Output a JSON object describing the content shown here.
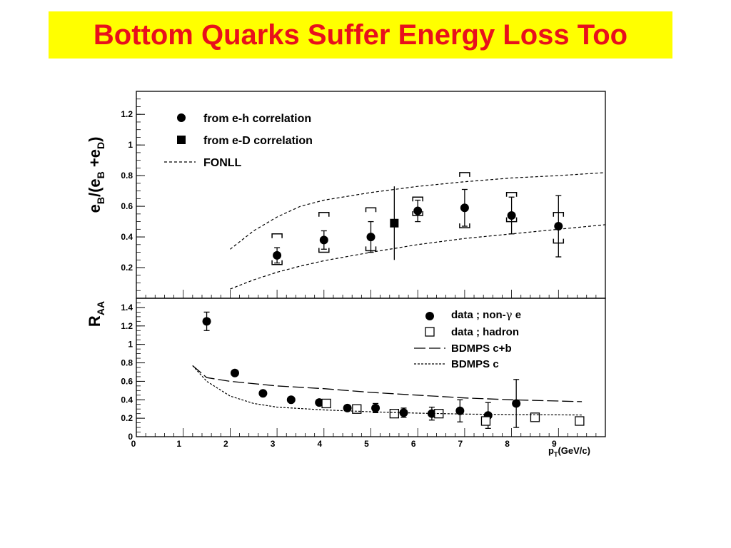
{
  "page_title": "Bottom Quarks Suffer Energy Loss Too",
  "colors": {
    "title_bg": "#ffff00",
    "title_text": "#e8101c",
    "ink": "#000000"
  },
  "chart_data": [
    {
      "type": "scatter",
      "panel": "top",
      "ylabel_parts": {
        "main": "e",
        "sub1": "B",
        "mid": "/(e",
        "sub2": "B",
        "plus": " +e",
        "sub3": "D",
        "close": ")"
      },
      "xlim": [
        0,
        10
      ],
      "ylim": [
        0.0,
        1.35
      ],
      "yticks": [
        0.2,
        0.4,
        0.6,
        0.8,
        1,
        1.2
      ],
      "ytick_labels": [
        "0.2",
        "0.4",
        "0.6",
        "0.8",
        "1",
        "1.2"
      ],
      "legend_position": "top-left",
      "series": [
        {
          "name": "from  e-h correlation",
          "marker": "filled-circle",
          "points": [
            {
              "x": 3.0,
              "y": 0.28,
              "err": 0.05,
              "sys_lo": 0.22,
              "sys_hi": 0.42
            },
            {
              "x": 4.0,
              "y": 0.38,
              "err": 0.06,
              "sys_lo": 0.3,
              "sys_hi": 0.56
            },
            {
              "x": 5.0,
              "y": 0.4,
              "err": 0.1,
              "sys_lo": 0.31,
              "sys_hi": 0.59
            },
            {
              "x": 6.0,
              "y": 0.57,
              "err": 0.07,
              "sys_lo": 0.54,
              "sys_hi": 0.66
            },
            {
              "x": 7.0,
              "y": 0.59,
              "err": 0.12,
              "sys_lo": 0.46,
              "sys_hi": 0.82
            },
            {
              "x": 8.0,
              "y": 0.54,
              "err": 0.12,
              "sys_lo": 0.5,
              "sys_hi": 0.69
            },
            {
              "x": 9.0,
              "y": 0.47,
              "err": 0.2,
              "sys_lo": 0.36,
              "sys_hi": 0.56
            }
          ]
        },
        {
          "name": "from  e-D correlation",
          "marker": "filled-square",
          "points": [
            {
              "x": 5.5,
              "y": 0.49,
              "err_lo": 0.24,
              "err_hi": 0.24
            }
          ]
        },
        {
          "name": "FONLL",
          "marker": "dashed-line",
          "band": true,
          "upper": [
            [
              2.0,
              0.32
            ],
            [
              2.5,
              0.44
            ],
            [
              3.0,
              0.53
            ],
            [
              3.5,
              0.6
            ],
            [
              4.0,
              0.64
            ],
            [
              5.0,
              0.69
            ],
            [
              6.0,
              0.73
            ],
            [
              7.0,
              0.76
            ],
            [
              8.0,
              0.785
            ],
            [
              9.0,
              0.8
            ],
            [
              10.0,
              0.82
            ]
          ],
          "lower": [
            [
              2.0,
              0.06
            ],
            [
              2.5,
              0.12
            ],
            [
              3.0,
              0.17
            ],
            [
              3.5,
              0.21
            ],
            [
              4.0,
              0.245
            ],
            [
              5.0,
              0.3
            ],
            [
              6.0,
              0.35
            ],
            [
              7.0,
              0.39
            ],
            [
              8.0,
              0.42
            ],
            [
              9.0,
              0.45
            ],
            [
              10.0,
              0.48
            ]
          ]
        }
      ]
    },
    {
      "type": "scatter",
      "panel": "bottom",
      "ylabel_parts": {
        "main": "R",
        "sub1": "AA"
      },
      "xlabel_parts": {
        "main": "p",
        "sub1": "T",
        "rest": "(GeV/c)"
      },
      "xlim": [
        0,
        10
      ],
      "ylim": [
        0.0,
        1.5
      ],
      "xticks": [
        0,
        1,
        2,
        3,
        4,
        5,
        6,
        7,
        8,
        9
      ],
      "xtick_labels": [
        "0",
        "1",
        "2",
        "3",
        "4",
        "5",
        "6",
        "7",
        "8",
        "9"
      ],
      "yticks": [
        0,
        0.2,
        0.4,
        0.6,
        0.8,
        1,
        1.2,
        1.4
      ],
      "ytick_labels": [
        "0",
        "0.2",
        "0.4",
        "0.6",
        "0.8",
        "1",
        "1.2",
        "1.4"
      ],
      "legend_position": "top-right",
      "series": [
        {
          "name_parts": {
            "a": "data ; non-",
            "sym": "γ",
            "b": " e"
          },
          "marker": "filled-circle",
          "points": [
            {
              "x": 1.5,
              "y": 1.25,
              "err": 0.1
            },
            {
              "x": 2.1,
              "y": 0.69,
              "err": 0.02
            },
            {
              "x": 2.7,
              "y": 0.47,
              "err": 0.02
            },
            {
              "x": 3.3,
              "y": 0.4,
              "err": 0.02
            },
            {
              "x": 3.9,
              "y": 0.37,
              "err": 0.02
            },
            {
              "x": 4.5,
              "y": 0.31,
              "err": 0.03
            },
            {
              "x": 5.1,
              "y": 0.31,
              "err": 0.05
            },
            {
              "x": 5.7,
              "y": 0.26,
              "err": 0.05
            },
            {
              "x": 6.3,
              "y": 0.25,
              "err": 0.07
            },
            {
              "x": 6.9,
              "y": 0.28,
              "err": 0.12
            },
            {
              "x": 7.5,
              "y": 0.23,
              "err": 0.14
            },
            {
              "x": 8.1,
              "y": 0.36,
              "err": 0.26
            }
          ]
        },
        {
          "name": "data ; hadron",
          "marker": "open-square",
          "points": [
            {
              "x": 4.05,
              "y": 0.36
            },
            {
              "x": 4.7,
              "y": 0.3
            },
            {
              "x": 5.5,
              "y": 0.25
            },
            {
              "x": 6.45,
              "y": 0.25
            },
            {
              "x": 7.45,
              "y": 0.17
            },
            {
              "x": 8.5,
              "y": 0.21
            },
            {
              "x": 9.45,
              "y": 0.17
            }
          ]
        },
        {
          "name": "BDMPS c+b",
          "marker": "long-dashed-line",
          "points": [
            [
              1.2,
              0.77
            ],
            [
              1.5,
              0.64
            ],
            [
              2.0,
              0.6
            ],
            [
              3.0,
              0.55
            ],
            [
              4.0,
              0.52
            ],
            [
              5.0,
              0.48
            ],
            [
              6.0,
              0.45
            ],
            [
              7.0,
              0.42
            ],
            [
              8.0,
              0.4
            ],
            [
              9.5,
              0.38
            ]
          ]
        },
        {
          "name": "BDMPS c",
          "marker": "short-dashed-line",
          "points": [
            [
              1.2,
              0.77
            ],
            [
              1.5,
              0.6
            ],
            [
              2.0,
              0.44
            ],
            [
              2.5,
              0.36
            ],
            [
              3.0,
              0.32
            ],
            [
              4.0,
              0.29
            ],
            [
              5.0,
              0.27
            ],
            [
              6.0,
              0.255
            ],
            [
              7.0,
              0.245
            ],
            [
              8.0,
              0.24
            ],
            [
              9.5,
              0.235
            ]
          ]
        }
      ]
    }
  ]
}
